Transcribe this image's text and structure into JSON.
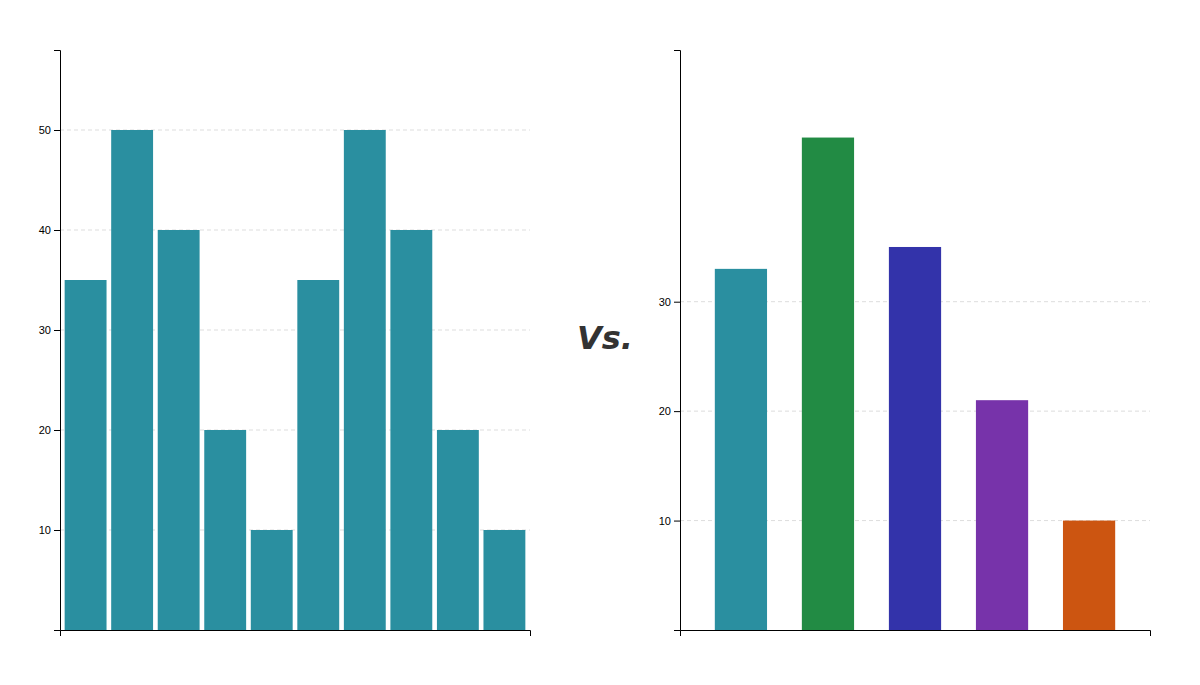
{
  "chart_data": [
    {
      "type": "bar",
      "categories": [
        null,
        null,
        null,
        null,
        null,
        null,
        null,
        null,
        null,
        null
      ],
      "values": [
        35,
        50,
        40,
        20,
        10,
        35,
        50,
        40,
        20,
        10
      ],
      "color": "#2a8fa0",
      "ylim": [
        0,
        58
      ],
      "yticks": [
        10,
        20,
        30,
        40,
        50
      ],
      "grid": true,
      "tick_labels": "y",
      "annotations": [
        "Vs."
      ]
    },
    {
      "type": "bar",
      "categories": [
        null,
        null,
        null,
        null,
        null
      ],
      "values": [
        33,
        45,
        35,
        21,
        10
      ],
      "colors": [
        "#2a8fa0",
        "#228B44",
        "#3333aa",
        "#7733aa",
        "#cc5511"
      ],
      "ylim": [
        0,
        53
      ],
      "yticks": [
        10,
        20,
        30
      ],
      "grid": true,
      "tick_labels": "y"
    }
  ]
}
